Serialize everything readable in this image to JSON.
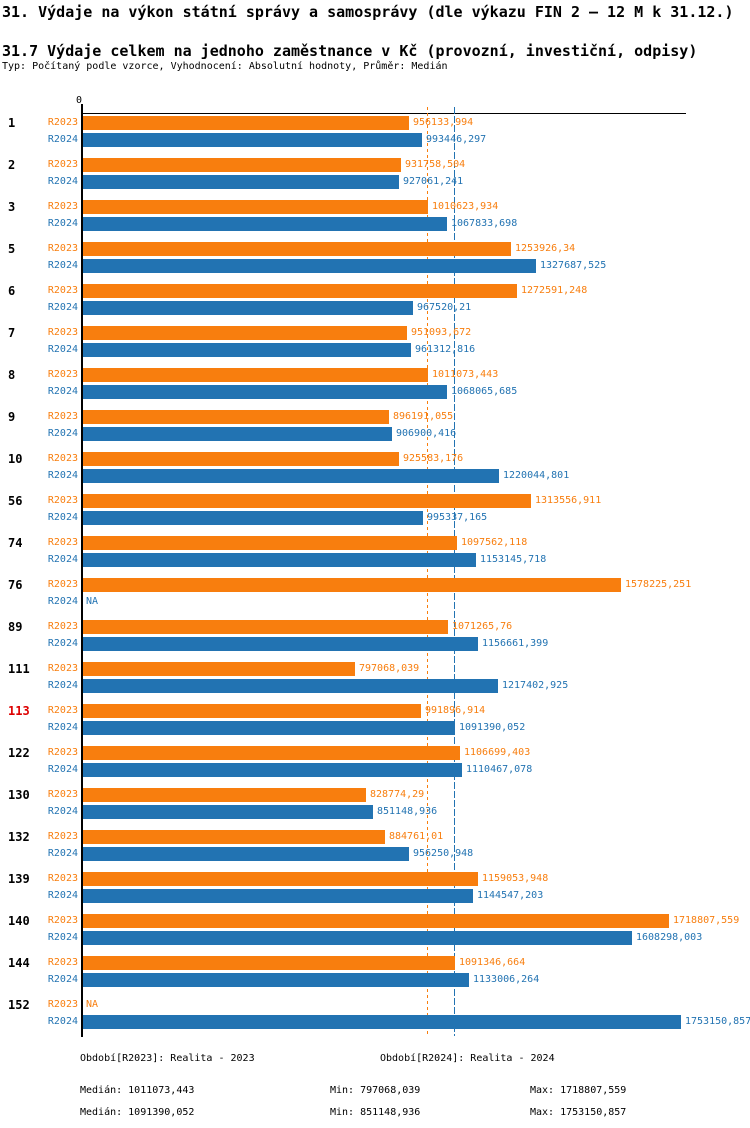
{
  "header": {
    "title": "31. Výdaje na výkon státní správy a samosprávy (dle výkazu FIN 2 – 12 M k 31.12.)",
    "subtitle": "31.7 Výdaje celkem na jednoho zaměstnance v Kč (provozní, investiční, odpisy)",
    "meta": "Typ: Počítaný podle vzorce, Vyhodnocení: Absolutní hodnoty, Průměr: Medián"
  },
  "axis": {
    "origin_label": "0"
  },
  "colors": {
    "r2023": "#F87E0E",
    "r2024": "#2273B2",
    "highlight_row": "#DD0000",
    "axis": "#000000"
  },
  "series": {
    "r2023_label": "R2023",
    "r2024_label": "R2024"
  },
  "rows": [
    {
      "id": "1",
      "highlight": false,
      "r2023_text": "956133,994",
      "r2023_value": 956133.994,
      "r2024_text": "993446,297",
      "r2024_value": 993446.297
    },
    {
      "id": "2",
      "highlight": false,
      "r2023_text": "931758,504",
      "r2023_value": 931758.504,
      "r2024_text": "927061,241",
      "r2024_value": 927061.241
    },
    {
      "id": "3",
      "highlight": false,
      "r2023_text": "1010623,934",
      "r2023_value": 1010623.934,
      "r2024_text": "1067833,698",
      "r2024_value": 1067833.698
    },
    {
      "id": "5",
      "highlight": false,
      "r2023_text": "1253926,34",
      "r2023_value": 1253926.34,
      "r2024_text": "1327687,525",
      "r2024_value": 1327687.525
    },
    {
      "id": "6",
      "highlight": false,
      "r2023_text": "1272591,248",
      "r2023_value": 1272591.248,
      "r2024_text": "967520,21",
      "r2024_value": 967520.21
    },
    {
      "id": "7",
      "highlight": false,
      "r2023_text": "951093,672",
      "r2023_value": 951093.672,
      "r2024_text": "961312,816",
      "r2024_value": 961312.816
    },
    {
      "id": "8",
      "highlight": false,
      "r2023_text": "1011073,443",
      "r2023_value": 1011073.443,
      "r2024_text": "1068065,685",
      "r2024_value": 1068065.685
    },
    {
      "id": "9",
      "highlight": false,
      "r2023_text": "896191,055",
      "r2023_value": 896191.055,
      "r2024_text": "906900,416",
      "r2024_value": 906900.416
    },
    {
      "id": "10",
      "highlight": false,
      "r2023_text": "925583,176",
      "r2023_value": 925583.176,
      "r2024_text": "1220044,801",
      "r2024_value": 1220044.801
    },
    {
      "id": "56",
      "highlight": false,
      "r2023_text": "1313556,911",
      "r2023_value": 1313556.911,
      "r2024_text": "995337,165",
      "r2024_value": 995337.165
    },
    {
      "id": "74",
      "highlight": false,
      "r2023_text": "1097562,118",
      "r2023_value": 1097562.118,
      "r2024_text": "1153145,718",
      "r2024_value": 1153145.718
    },
    {
      "id": "76",
      "highlight": false,
      "r2023_text": "1578225,251",
      "r2023_value": 1578225.251,
      "r2024_text": "NA",
      "r2024_value": null
    },
    {
      "id": "89",
      "highlight": false,
      "r2023_text": "1071265,76",
      "r2023_value": 1071265.76,
      "r2024_text": "1156661,399",
      "r2024_value": 1156661.399
    },
    {
      "id": "111",
      "highlight": false,
      "r2023_text": "797068,039",
      "r2023_value": 797068.039,
      "r2024_text": "1217402,925",
      "r2024_value": 1217402.925
    },
    {
      "id": "113",
      "highlight": true,
      "r2023_text": "991896,914",
      "r2023_value": 991896.914,
      "r2024_text": "1091390,052",
      "r2024_value": 1091390.052
    },
    {
      "id": "122",
      "highlight": false,
      "r2023_text": "1106699,403",
      "r2023_value": 1106699.403,
      "r2024_text": "1110467,078",
      "r2024_value": 1110467.078
    },
    {
      "id": "130",
      "highlight": false,
      "r2023_text": "828774,29",
      "r2023_value": 828774.29,
      "r2024_text": "851148,936",
      "r2024_value": 851148.936
    },
    {
      "id": "132",
      "highlight": false,
      "r2023_text": "884761,01",
      "r2023_value": 884761.01,
      "r2024_text": "956250,948",
      "r2024_value": 956250.948
    },
    {
      "id": "139",
      "highlight": false,
      "r2023_text": "1159053,948",
      "r2023_value": 1159053.948,
      "r2024_text": "1144547,203",
      "r2024_value": 1144547.203
    },
    {
      "id": "140",
      "highlight": false,
      "r2023_text": "1718807,559",
      "r2023_value": 1718807.559,
      "r2024_text": "1608298,003",
      "r2024_value": 1608298.003
    },
    {
      "id": "144",
      "highlight": false,
      "r2023_text": "1091346,664",
      "r2023_value": 1091346.664,
      "r2024_text": "1133006,264",
      "r2024_value": 1133006.264
    },
    {
      "id": "152",
      "highlight": false,
      "r2023_text": "NA",
      "r2023_value": null,
      "r2024_text": "1753150,857",
      "r2024_value": 1753150.857
    }
  ],
  "medians": {
    "r2023": 1011073.443,
    "r2024": 1091390.052
  },
  "footer": {
    "legend_r2023": "Období[R2023]: Realita - 2023",
    "legend_r2024": "Období[R2024]: Realita - 2024",
    "stats_r2023": {
      "median": "Medián: 1011073,443",
      "min": "Min: 797068,039",
      "max": "Max: 1718807,559"
    },
    "stats_r2024": {
      "median": "Medián: 1091390,052",
      "min": "Min: 851148,936",
      "max": "Max: 1753150,857"
    }
  },
  "chart_data": {
    "type": "bar",
    "orientation": "horizontal",
    "title": "31. Výdaje na výkon státní správy a samosprávy (dle výkazu FIN 2 – 12 M k 31.12.)",
    "subtitle": "31.7 Výdaje celkem na jednoho zaměstnance v Kč (provozní, investiční, odpisy)",
    "evaluation_note": "Typ: Počítaný podle vzorce, Vyhodnocení: Absolutní hodnoty, Průměr: Medián",
    "categories": [
      "1",
      "2",
      "3",
      "5",
      "6",
      "7",
      "8",
      "9",
      "10",
      "56",
      "74",
      "76",
      "89",
      "111",
      "113",
      "122",
      "130",
      "132",
      "139",
      "140",
      "144",
      "152"
    ],
    "highlighted_category": "113",
    "series": [
      {
        "name": "R2023",
        "label": "Období[R2023]: Realita - 2023",
        "color": "#F87E0E",
        "values": [
          956133.994,
          931758.504,
          1010623.934,
          1253926.34,
          1272591.248,
          951093.672,
          1011073.443,
          896191.055,
          925583.176,
          1313556.911,
          1097562.118,
          1578225.251,
          1071265.76,
          797068.039,
          991896.914,
          1106699.403,
          828774.29,
          884761.01,
          1159053.948,
          1718807.559,
          1091346.664,
          null
        ]
      },
      {
        "name": "R2024",
        "label": "Období[R2024]: Realita - 2024",
        "color": "#2273B2",
        "values": [
          993446.297,
          927061.241,
          1067833.698,
          1327687.525,
          967520.21,
          961312.816,
          1068065.685,
          906900.416,
          1220044.801,
          995337.165,
          1153145.718,
          null,
          1156661.399,
          1217402.925,
          1091390.052,
          1110467.078,
          851148.936,
          956250.948,
          1144547.203,
          1608298.003,
          1133006.264,
          1753150.857
        ]
      }
    ],
    "median_lines": {
      "R2023": 1011073.443,
      "R2024": 1091390.052
    },
    "stats": {
      "R2023": {
        "median": 1011073.443,
        "min": 797068.039,
        "max": 1718807.559
      },
      "R2024": {
        "median": 1091390.052,
        "min": 851148.936,
        "max": 1753150.857
      }
    },
    "xlim": [
      0,
      1753150.857
    ],
    "grid": false,
    "value_labels": true,
    "legend_position": "bottom"
  }
}
